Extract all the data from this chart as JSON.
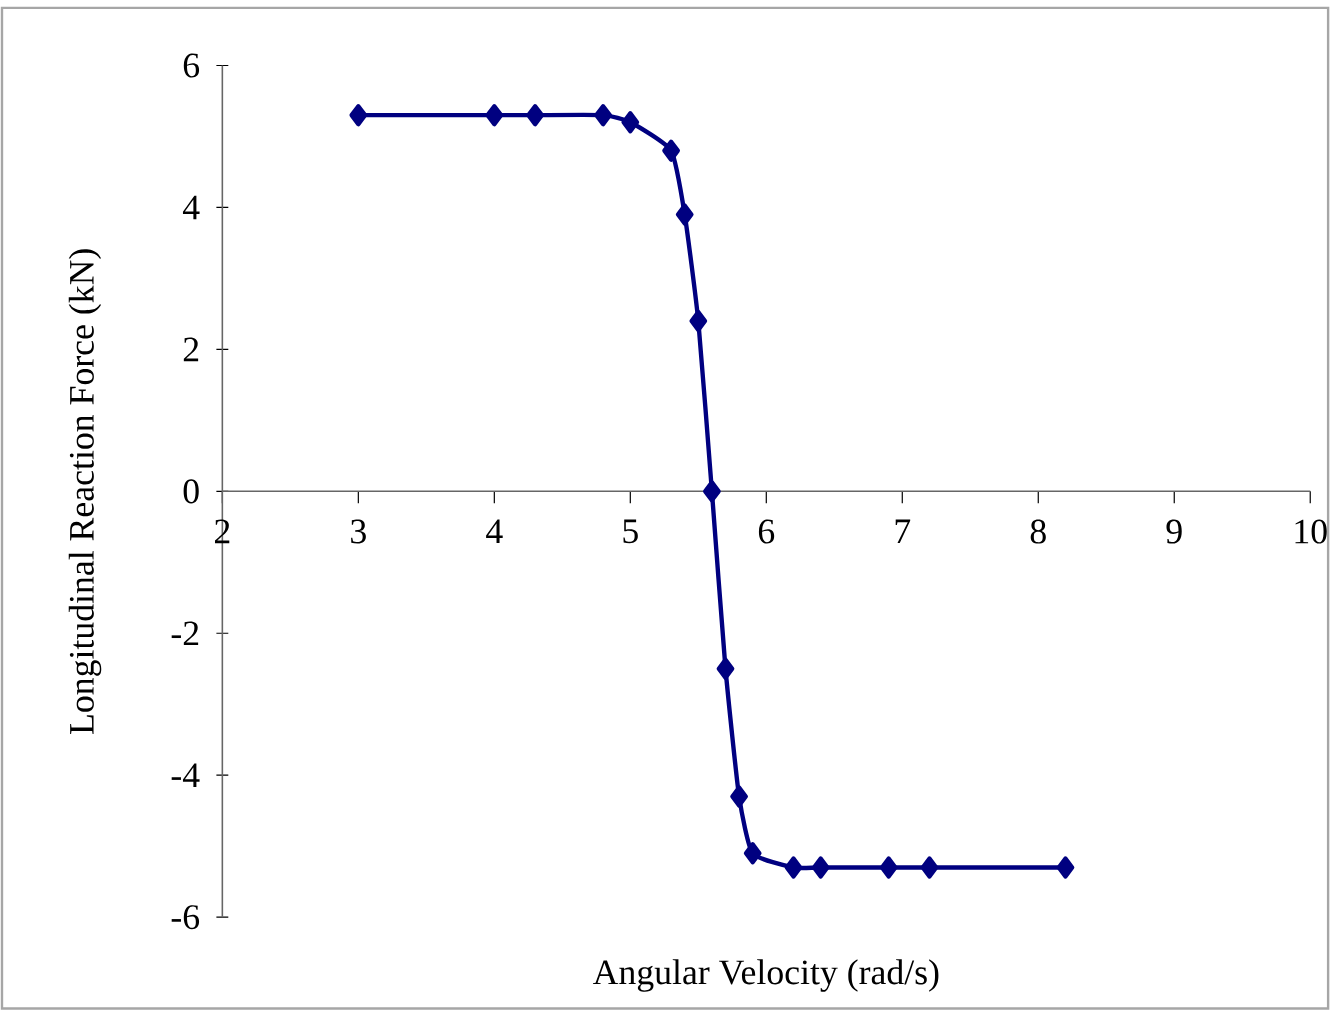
{
  "chart_data": {
    "type": "line",
    "xlabel": "Angular Velocity (rad/s)",
    "ylabel": "Longitudinal Reaction Force (kN)",
    "x": [
      3.0,
      4.0,
      4.3,
      4.8,
      5.0,
      5.3,
      5.4,
      5.5,
      5.6,
      5.7,
      5.8,
      5.9,
      6.2,
      6.4,
      6.9,
      7.2,
      8.2
    ],
    "series": [
      {
        "color": "#000080",
        "values": [
          5.3,
          5.3,
          5.3,
          5.3,
          5.2,
          4.8,
          3.9,
          2.4,
          0.0,
          -2.5,
          -4.3,
          -5.1,
          -5.3,
          -5.3,
          -5.3,
          -5.3,
          -5.3
        ]
      }
    ],
    "xlim": [
      2,
      10
    ],
    "ylim": [
      -6,
      6
    ],
    "xticks": [
      2,
      3,
      4,
      5,
      6,
      7,
      8,
      9,
      10
    ],
    "yticks": [
      -6,
      -4,
      -2,
      0,
      2,
      4,
      6
    ],
    "grid": false,
    "marker": "diamond",
    "line_style": "solid"
  }
}
